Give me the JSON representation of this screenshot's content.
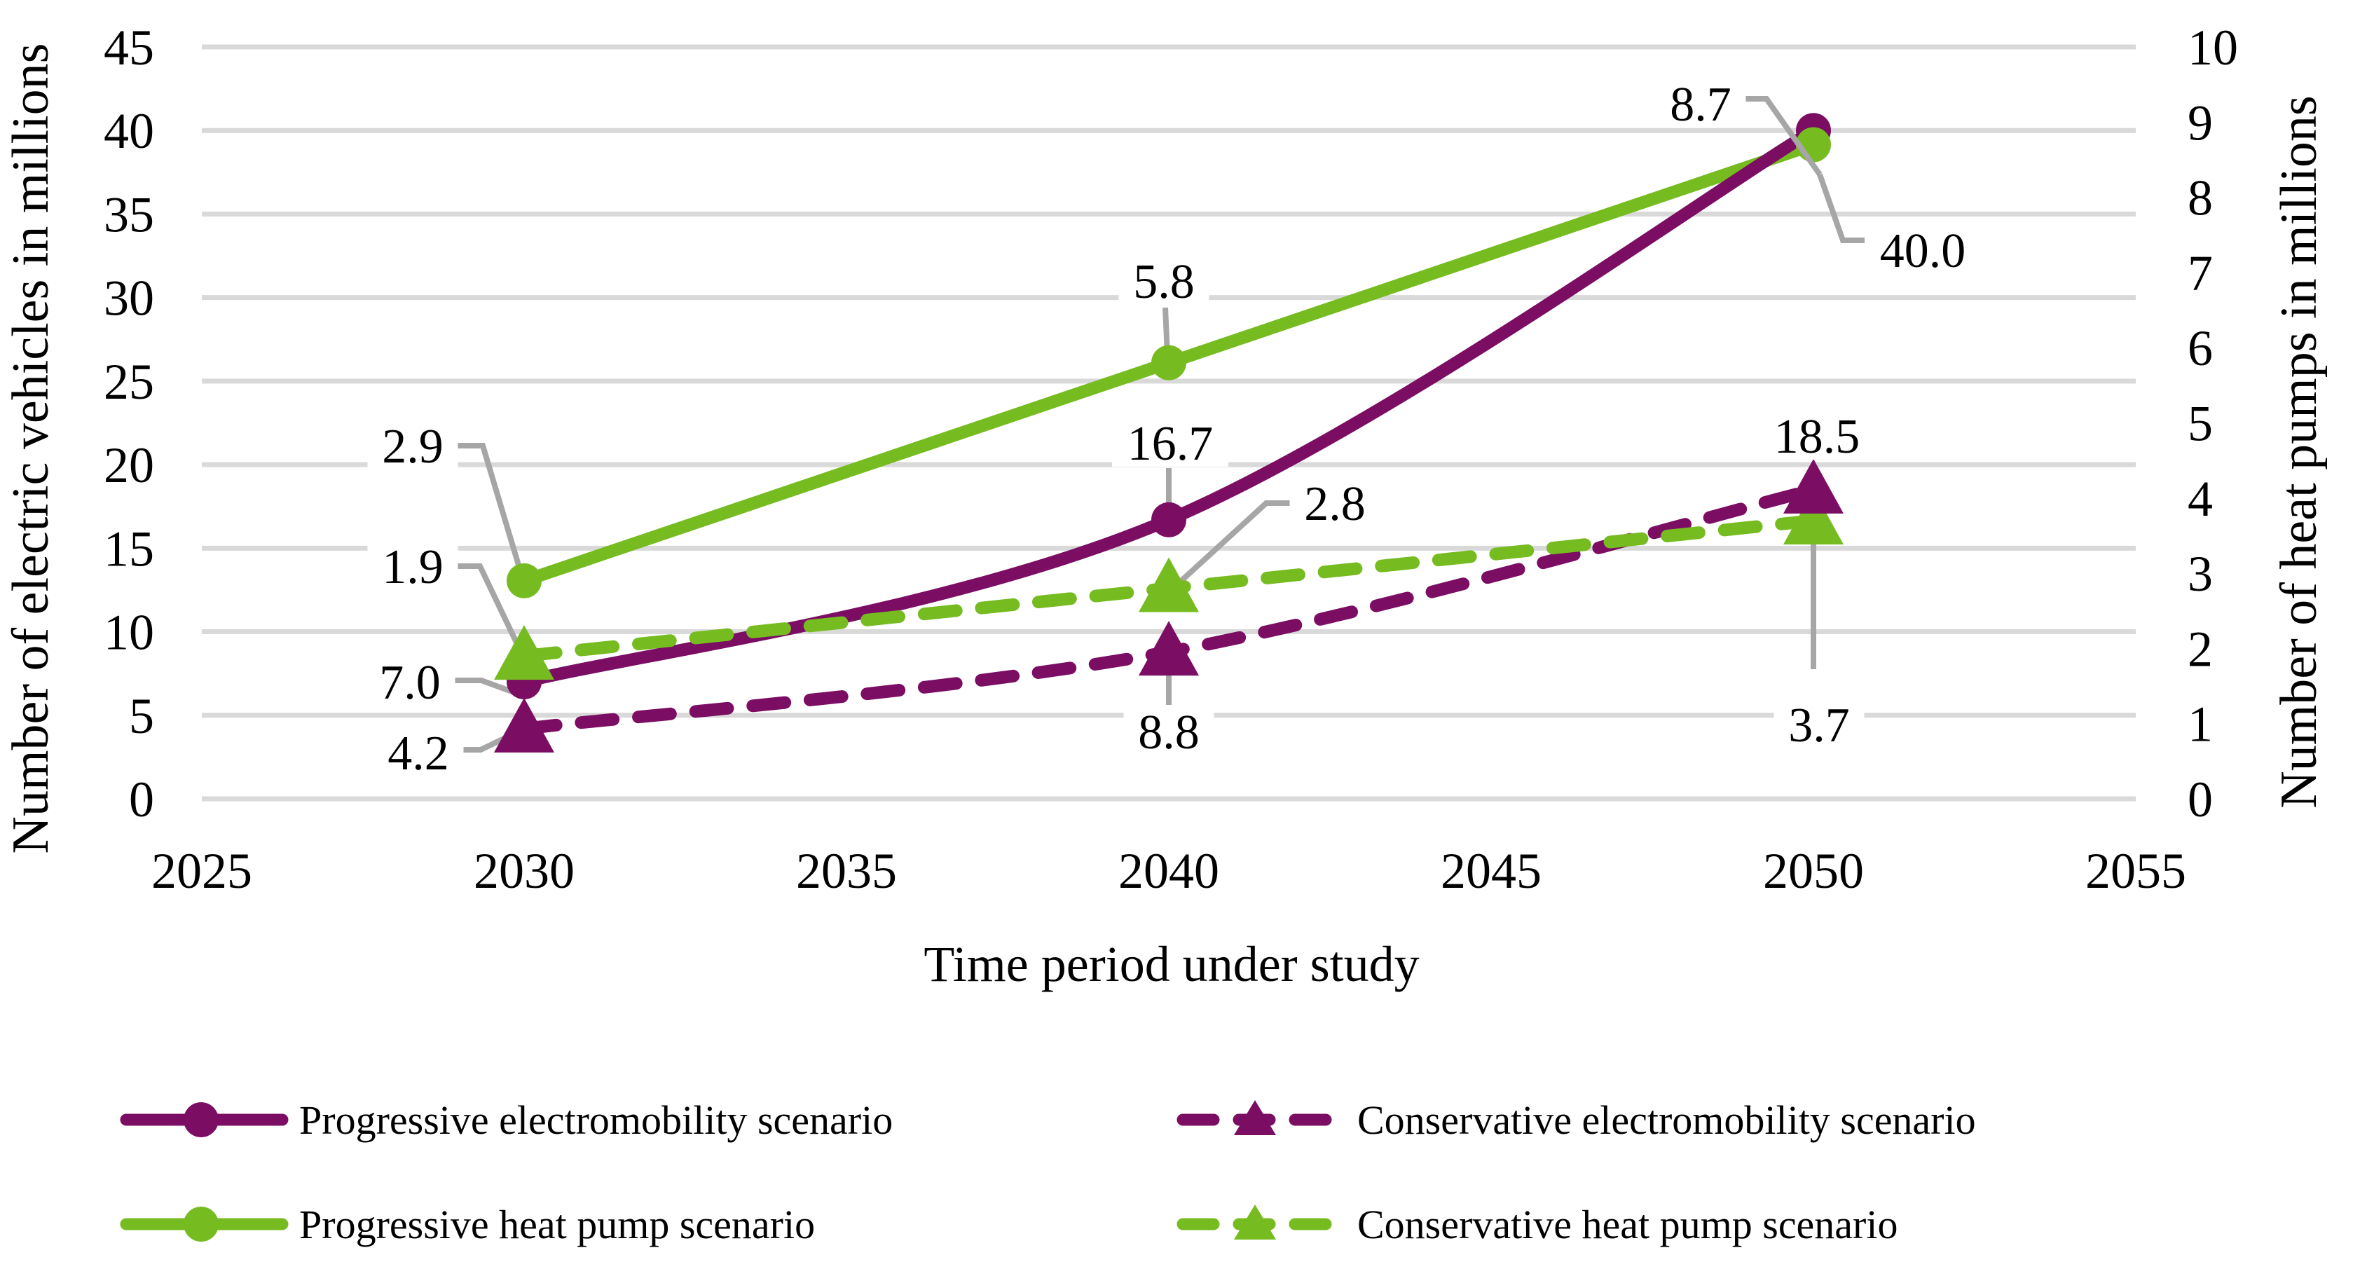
{
  "chart_data": {
    "type": "line",
    "title": "",
    "xlabel": "Time period under study",
    "x": [
      2030,
      2040,
      2050
    ],
    "x_axis": {
      "min": 2025,
      "max": 2055,
      "step": 5,
      "ticks": [
        2025,
        2030,
        2035,
        2040,
        2045,
        2050,
        2055
      ]
    },
    "y_left": {
      "label": "Number of electric vehicles in millions",
      "min": 0,
      "max": 45,
      "step": 5,
      "ticks": [
        0,
        5,
        10,
        15,
        20,
        25,
        30,
        35,
        40,
        45
      ]
    },
    "y_right": {
      "label": "Number of heat pumps in millions",
      "min": 0,
      "max": 10,
      "step": 1,
      "ticks": [
        0,
        1,
        2,
        3,
        4,
        5,
        6,
        7,
        8,
        9,
        10
      ]
    },
    "series": [
      {
        "name": "Progressive electromobility scenario",
        "axis": "left",
        "style": "solid",
        "marker": "circle",
        "color": "#7B0D63",
        "values": [
          7.0,
          16.7,
          40.0
        ]
      },
      {
        "name": "Conservative electromobility scenario",
        "axis": "left",
        "style": "dashed",
        "marker": "triangle",
        "color": "#7B0D63",
        "values": [
          4.2,
          8.8,
          18.5
        ]
      },
      {
        "name": "Progressive heat pump scenario",
        "axis": "right",
        "style": "solid",
        "marker": "circle",
        "color": "#76BC21",
        "values": [
          2.9,
          5.8,
          8.7
        ]
      },
      {
        "name": "Conservative heat pump scenario",
        "axis": "right",
        "style": "dashed",
        "marker": "triangle",
        "color": "#76BC21",
        "values": [
          1.9,
          2.8,
          3.7
        ]
      }
    ],
    "data_labels": [
      {
        "series": 0,
        "point": 0,
        "text": "7.0"
      },
      {
        "series": 0,
        "point": 1,
        "text": "16.7"
      },
      {
        "series": 0,
        "point": 2,
        "text": "40.0"
      },
      {
        "series": 1,
        "point": 0,
        "text": "4.2"
      },
      {
        "series": 1,
        "point": 1,
        "text": "8.8"
      },
      {
        "series": 1,
        "point": 2,
        "text": "18.5"
      },
      {
        "series": 2,
        "point": 0,
        "text": "2.9"
      },
      {
        "series": 2,
        "point": 1,
        "text": "5.8"
      },
      {
        "series": 2,
        "point": 2,
        "text": "8.7"
      },
      {
        "series": 3,
        "point": 0,
        "text": "1.9"
      },
      {
        "series": 3,
        "point": 1,
        "text": "2.8"
      },
      {
        "series": 3,
        "point": 2,
        "text": "3.7"
      }
    ],
    "legend_position": "bottom",
    "grid": "on",
    "colors": {
      "gridline": "#D9D9D9",
      "leader": "#A6A6A6",
      "text": "#000000",
      "background": "#FFFFFF"
    }
  }
}
